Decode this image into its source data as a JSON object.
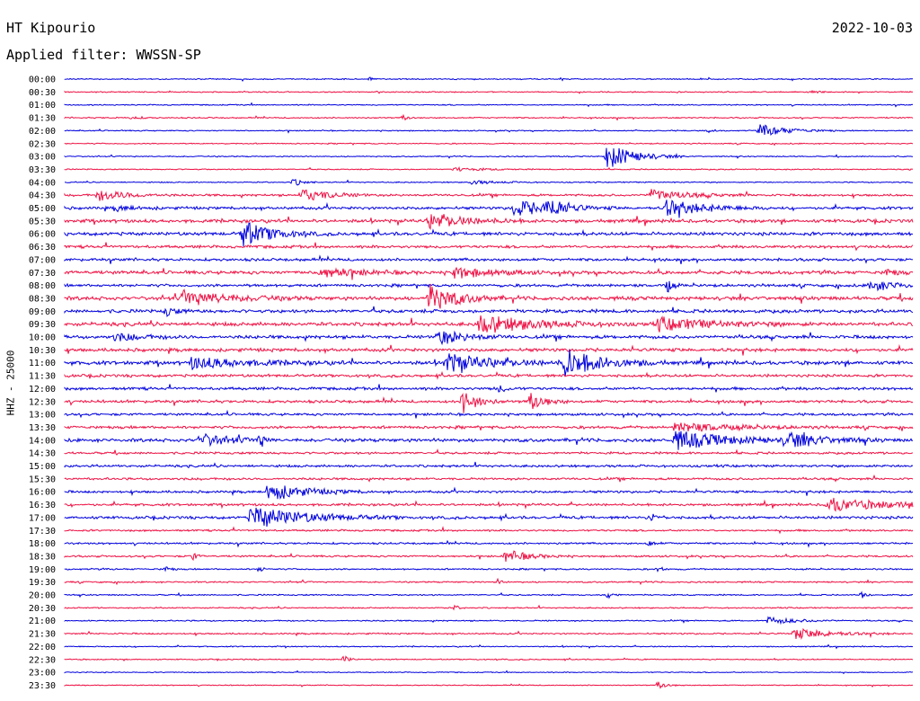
{
  "header": {
    "station": "HT Kipourio",
    "date": "2022-10-03",
    "filter": "Applied filter: WWSSN-SP"
  },
  "chart_data": {
    "type": "helicorder",
    "ylabel": "HHZ - 25000",
    "colors": {
      "even": "#0000dd",
      "odd": "#ee1144"
    },
    "rows": [
      {
        "label": "00:00",
        "base": 0.6,
        "events": [
          {
            "x": 0.36,
            "amp": 1.5,
            "dur": 0.004
          }
        ]
      },
      {
        "label": "00:30",
        "base": 0.6,
        "events": [
          {
            "x": 0.88,
            "amp": 1.5,
            "dur": 0.01
          }
        ]
      },
      {
        "label": "01:00",
        "base": 0.6,
        "events": []
      },
      {
        "label": "01:30",
        "base": 0.7,
        "events": [
          {
            "x": 0.4,
            "amp": 3,
            "dur": 0.005
          },
          {
            "x": 0.08,
            "amp": 1.5,
            "dur": 0.01
          }
        ]
      },
      {
        "label": "02:00",
        "base": 0.6,
        "events": [
          {
            "x": 0.82,
            "amp": 7,
            "dur": 0.03
          },
          {
            "x": 0.76,
            "amp": 2,
            "dur": 0.005
          }
        ]
      },
      {
        "label": "02:30",
        "base": 0.6,
        "events": []
      },
      {
        "label": "03:00",
        "base": 0.6,
        "events": [
          {
            "x": 0.64,
            "amp": 14,
            "dur": 0.03
          }
        ]
      },
      {
        "label": "03:30",
        "base": 0.6,
        "events": [
          {
            "x": 0.46,
            "amp": 2,
            "dur": 0.03
          }
        ]
      },
      {
        "label": "04:00",
        "base": 0.6,
        "events": [
          {
            "x": 0.27,
            "amp": 4,
            "dur": 0.01
          },
          {
            "x": 0.48,
            "amp": 2,
            "dur": 0.03
          }
        ]
      },
      {
        "label": "04:30",
        "base": 1.2,
        "events": [
          {
            "x": 0.04,
            "amp": 6,
            "dur": 0.03
          },
          {
            "x": 0.28,
            "amp": 7,
            "dur": 0.03
          },
          {
            "x": 0.69,
            "amp": 6,
            "dur": 0.04
          }
        ]
      },
      {
        "label": "05:00",
        "base": 1.5,
        "events": [
          {
            "x": 0.53,
            "amp": 9,
            "dur": 0.04
          },
          {
            "x": 0.57,
            "amp": 10,
            "dur": 0.015
          },
          {
            "x": 0.71,
            "amp": 9,
            "dur": 0.04
          },
          {
            "x": 0.06,
            "amp": 3,
            "dur": 0.02
          }
        ]
      },
      {
        "label": "05:30",
        "base": 1.8,
        "events": [
          {
            "x": 0.43,
            "amp": 8,
            "dur": 0.04
          }
        ]
      },
      {
        "label": "06:00",
        "base": 1.8,
        "events": [
          {
            "x": 0.21,
            "amp": 14,
            "dur": 0.03
          }
        ]
      },
      {
        "label": "06:30",
        "base": 1.5,
        "events": []
      },
      {
        "label": "07:00",
        "base": 1.5,
        "events": []
      },
      {
        "label": "07:30",
        "base": 1.8,
        "events": [
          {
            "x": 0.3,
            "amp": 6,
            "dur": 0.04
          },
          {
            "x": 0.46,
            "amp": 6,
            "dur": 0.04
          },
          {
            "x": 0.97,
            "amp": 4,
            "dur": 0.01
          }
        ]
      },
      {
        "label": "08:00",
        "base": 1.5,
        "events": [
          {
            "x": 0.71,
            "amp": 9,
            "dur": 0.005
          },
          {
            "x": 0.95,
            "amp": 6,
            "dur": 0.03
          }
        ]
      },
      {
        "label": "08:30",
        "base": 2.0,
        "events": [
          {
            "x": 0.14,
            "amp": 8,
            "dur": 0.05
          },
          {
            "x": 0.43,
            "amp": 15,
            "dur": 0.03
          }
        ]
      },
      {
        "label": "09:00",
        "base": 1.8,
        "events": [
          {
            "x": 0.12,
            "amp": 5,
            "dur": 0.01
          }
        ]
      },
      {
        "label": "09:30",
        "base": 2.0,
        "events": [
          {
            "x": 0.49,
            "amp": 10,
            "dur": 0.06
          },
          {
            "x": 0.7,
            "amp": 7,
            "dur": 0.06
          }
        ]
      },
      {
        "label": "10:00",
        "base": 1.8,
        "events": [
          {
            "x": 0.44,
            "amp": 8,
            "dur": 0.03
          },
          {
            "x": 0.06,
            "amp": 4,
            "dur": 0.03
          }
        ]
      },
      {
        "label": "10:30",
        "base": 1.8,
        "events": []
      },
      {
        "label": "11:00",
        "base": 2.0,
        "events": [
          {
            "x": 0.15,
            "amp": 6,
            "dur": 0.06
          },
          {
            "x": 0.45,
            "amp": 10,
            "dur": 0.05
          },
          {
            "x": 0.59,
            "amp": 15,
            "dur": 0.04
          }
        ]
      },
      {
        "label": "11:30",
        "base": 1.5,
        "events": []
      },
      {
        "label": "12:00",
        "base": 1.5,
        "events": [
          {
            "x": 0.51,
            "amp": 4,
            "dur": 0.01
          }
        ]
      },
      {
        "label": "12:30",
        "base": 1.5,
        "events": [
          {
            "x": 0.47,
            "amp": 14,
            "dur": 0.015
          },
          {
            "x": 0.55,
            "amp": 10,
            "dur": 0.015
          }
        ]
      },
      {
        "label": "13:00",
        "base": 1.3,
        "events": []
      },
      {
        "label": "13:30",
        "base": 1.5,
        "events": [
          {
            "x": 0.72,
            "amp": 5,
            "dur": 0.06
          }
        ]
      },
      {
        "label": "14:00",
        "base": 1.8,
        "events": [
          {
            "x": 0.16,
            "amp": 7,
            "dur": 0.03
          },
          {
            "x": 0.23,
            "amp": 9,
            "dur": 0.005
          },
          {
            "x": 0.72,
            "amp": 10,
            "dur": 0.06
          },
          {
            "x": 0.85,
            "amp": 8,
            "dur": 0.04
          }
        ]
      },
      {
        "label": "14:30",
        "base": 1.2,
        "events": []
      },
      {
        "label": "15:00",
        "base": 1.3,
        "events": []
      },
      {
        "label": "15:30",
        "base": 1.2,
        "events": []
      },
      {
        "label": "16:00",
        "base": 1.3,
        "events": [
          {
            "x": 0.24,
            "amp": 10,
            "dur": 0.04
          }
        ]
      },
      {
        "label": "16:30",
        "base": 1.3,
        "events": [
          {
            "x": 0.9,
            "amp": 7,
            "dur": 0.07
          }
        ]
      },
      {
        "label": "17:00",
        "base": 1.5,
        "events": [
          {
            "x": 0.22,
            "amp": 12,
            "dur": 0.06
          },
          {
            "x": 0.69,
            "amp": 4,
            "dur": 0.01
          }
        ]
      },
      {
        "label": "17:30",
        "base": 1.0,
        "events": []
      },
      {
        "label": "18:00",
        "base": 1.0,
        "events": [
          {
            "x": 0.69,
            "amp": 4,
            "dur": 0.005
          }
        ]
      },
      {
        "label": "18:30",
        "base": 1.0,
        "events": [
          {
            "x": 0.52,
            "amp": 7,
            "dur": 0.025
          },
          {
            "x": 0.15,
            "amp": 5,
            "dur": 0.005
          }
        ]
      },
      {
        "label": "19:00",
        "base": 0.8,
        "events": [
          {
            "x": 0.12,
            "amp": 3,
            "dur": 0.005
          },
          {
            "x": 0.23,
            "amp": 3,
            "dur": 0.005
          },
          {
            "x": 0.7,
            "amp": 3,
            "dur": 0.005
          }
        ]
      },
      {
        "label": "19:30",
        "base": 0.8,
        "events": [
          {
            "x": 0.51,
            "amp": 3,
            "dur": 0.005
          }
        ]
      },
      {
        "label": "20:00",
        "base": 0.7,
        "events": [
          {
            "x": 0.64,
            "amp": 5,
            "dur": 0.005
          },
          {
            "x": 0.94,
            "amp": 4,
            "dur": 0.005
          }
        ]
      },
      {
        "label": "20:30",
        "base": 0.7,
        "events": [
          {
            "x": 0.46,
            "amp": 3,
            "dur": 0.005
          }
        ]
      },
      {
        "label": "21:00",
        "base": 0.7,
        "events": [
          {
            "x": 0.83,
            "amp": 4,
            "dur": 0.03
          }
        ]
      },
      {
        "label": "21:30",
        "base": 0.8,
        "events": [
          {
            "x": 0.86,
            "amp": 6,
            "dur": 0.04
          }
        ]
      },
      {
        "label": "22:00",
        "base": 0.6,
        "events": []
      },
      {
        "label": "22:30",
        "base": 0.6,
        "events": [
          {
            "x": 0.33,
            "amp": 5,
            "dur": 0.005
          }
        ]
      },
      {
        "label": "23:00",
        "base": 0.5,
        "events": []
      },
      {
        "label": "23:30",
        "base": 0.5,
        "events": [
          {
            "x": 0.7,
            "amp": 4,
            "dur": 0.01
          }
        ]
      }
    ]
  }
}
